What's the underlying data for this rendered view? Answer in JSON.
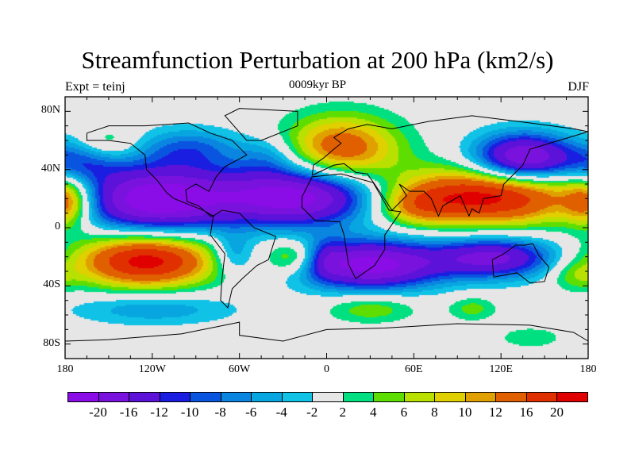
{
  "title": "Streamfunction Perturbation at 200 hPa (km2/s)",
  "left_string": "Expt = teinj",
  "center_string": "0009kyr BP",
  "right_string": "DJF",
  "lat_ticks": [
    {
      "lat": 80,
      "label": "80N"
    },
    {
      "lat": 40,
      "label": "40N"
    },
    {
      "lat": 0,
      "label": "0"
    },
    {
      "lat": -40,
      "label": "40S"
    },
    {
      "lat": -80,
      "label": "80S"
    }
  ],
  "lon_ticks": [
    {
      "lon": -180,
      "label": "180"
    },
    {
      "lon": -120,
      "label": "120W"
    },
    {
      "lon": -60,
      "label": "60W"
    },
    {
      "lon": 0,
      "label": "0"
    },
    {
      "lon": 60,
      "label": "60E"
    },
    {
      "lon": 120,
      "label": "120E"
    },
    {
      "lon": 180,
      "label": "180"
    }
  ],
  "colorbar": {
    "labels": [
      "-20",
      "-16",
      "-12",
      "-10",
      "-8",
      "-6",
      "-4",
      "-2",
      "2",
      "4",
      "6",
      "8",
      "10",
      "12",
      "16",
      "20"
    ],
    "levels": [
      -20,
      -16,
      -12,
      -10,
      -8,
      -6,
      -4,
      -2,
      2,
      4,
      6,
      8,
      10,
      12,
      16,
      20
    ],
    "colors": [
      "#8a0ce6",
      "#7a12de",
      "#5c12d8",
      "#1a1ee0",
      "#0a55e0",
      "#0a85e0",
      "#08a6e0",
      "#10c2e6",
      "#e6e6e6",
      "#00e080",
      "#5ede00",
      "#b8e000",
      "#e0d000",
      "#e0a000",
      "#e06000",
      "#e03000",
      "#e00000"
    ]
  },
  "chart_data": {
    "type": "heatmap",
    "title": "Streamfunction Perturbation at 200 hPa (km2/s)",
    "xlim": [
      -180,
      180
    ],
    "ylim": [
      -90,
      90
    ],
    "field_centers": [
      {
        "lon": -120,
        "lat": 20,
        "amp": -24,
        "rlon": 38,
        "rlat": 16
      },
      {
        "lon": -20,
        "lat": 22,
        "amp": -23,
        "rlon": 40,
        "rlat": 14
      },
      {
        "lon": 110,
        "lat": 22,
        "amp": 22,
        "rlon": 48,
        "rlat": 14
      },
      {
        "lon": 10,
        "lat": 55,
        "amp": 15,
        "rlon": 28,
        "rlat": 16
      },
      {
        "lon": 135,
        "lat": 48,
        "amp": -22,
        "rlon": 24,
        "rlat": 12
      },
      {
        "lon": -125,
        "lat": -22,
        "amp": 22,
        "rlon": 34,
        "rlat": 13
      },
      {
        "lon": 30,
        "lat": -25,
        "amp": -22,
        "rlon": 34,
        "rlat": 12
      },
      {
        "lon": 115,
        "lat": -20,
        "amp": -17,
        "rlon": 30,
        "rlat": 10
      },
      {
        "lon": -25,
        "lat": -20,
        "amp": 9,
        "rlon": 12,
        "rlat": 8
      },
      {
        "lon": -65,
        "lat": -18,
        "amp": -7,
        "rlon": 10,
        "rlat": 10
      },
      {
        "lon": 30,
        "lat": -55,
        "amp": 6,
        "rlon": 22,
        "rlat": 7
      },
      {
        "lon": -120,
        "lat": -55,
        "amp": -6,
        "rlon": 40,
        "rlat": 8
      },
      {
        "lon": -180,
        "lat": 18,
        "amp": 13,
        "rlon": 12,
        "rlat": 12
      },
      {
        "lon": -170,
        "lat": 45,
        "amp": -8,
        "rlon": 20,
        "rlat": 10
      },
      {
        "lon": -150,
        "lat": 58,
        "amp": 5,
        "rlon": 14,
        "rlat": 8
      },
      {
        "lon": -95,
        "lat": 55,
        "amp": -8,
        "rlon": 25,
        "rlat": 10
      },
      {
        "lon": -40,
        "lat": 50,
        "amp": -5,
        "rlon": 15,
        "rlat": 10
      },
      {
        "lon": 60,
        "lat": 15,
        "amp": 7,
        "rlon": 18,
        "rlat": 9
      },
      {
        "lon": 100,
        "lat": -55,
        "amp": 5,
        "rlon": 12,
        "rlat": 6
      },
      {
        "lon": 140,
        "lat": -75,
        "amp": 4,
        "rlon": 15,
        "rlat": 5
      },
      {
        "lon": 170,
        "lat": -32,
        "amp": 5,
        "rlon": 12,
        "rlat": 8
      },
      {
        "lon": 0,
        "lat": -20,
        "amp": -4,
        "rlon": 8,
        "rlat": 10
      }
    ]
  }
}
